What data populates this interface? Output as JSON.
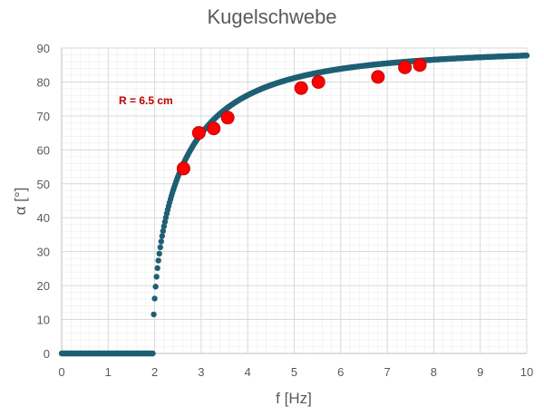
{
  "chart_data": {
    "type": "scatter",
    "title": "Kugelschwebe",
    "xlabel": "f [Hz]",
    "ylabel": "α [°]",
    "xlim": [
      0,
      10
    ],
    "ylim": [
      0,
      90
    ],
    "x_ticks": [
      0,
      1,
      2,
      3,
      4,
      5,
      6,
      7,
      8,
      9,
      10
    ],
    "y_ticks": [
      0,
      10,
      20,
      30,
      40,
      50,
      60,
      70,
      80,
      90
    ],
    "grid": true,
    "minor_grid": true,
    "annotation": "R = 6.5 cm",
    "colors": {
      "model": "#1f5f74",
      "measured": "#ff0000",
      "measured_edge": "#c00000",
      "annotation": "#c00000",
      "grid": "#d9d9d9",
      "minor_grid": "#ececec"
    },
    "series": [
      {
        "role": "model",
        "marker": "circle-small",
        "x_start": 0,
        "x_end": 10,
        "x_step": 0.02,
        "threshold_hz": 1.96,
        "formula": "alpha = arccos((f0/f)^2) for f > f0, else 0"
      },
      {
        "role": "measured",
        "marker": "circle-large",
        "points": [
          [
            2.62,
            54.5
          ],
          [
            2.95,
            65.0
          ],
          [
            3.27,
            66.3
          ],
          [
            3.57,
            69.5
          ],
          [
            5.15,
            78.2
          ],
          [
            5.52,
            80.0
          ],
          [
            6.8,
            81.5
          ],
          [
            7.38,
            84.3
          ],
          [
            7.7,
            85.0
          ]
        ]
      }
    ]
  }
}
